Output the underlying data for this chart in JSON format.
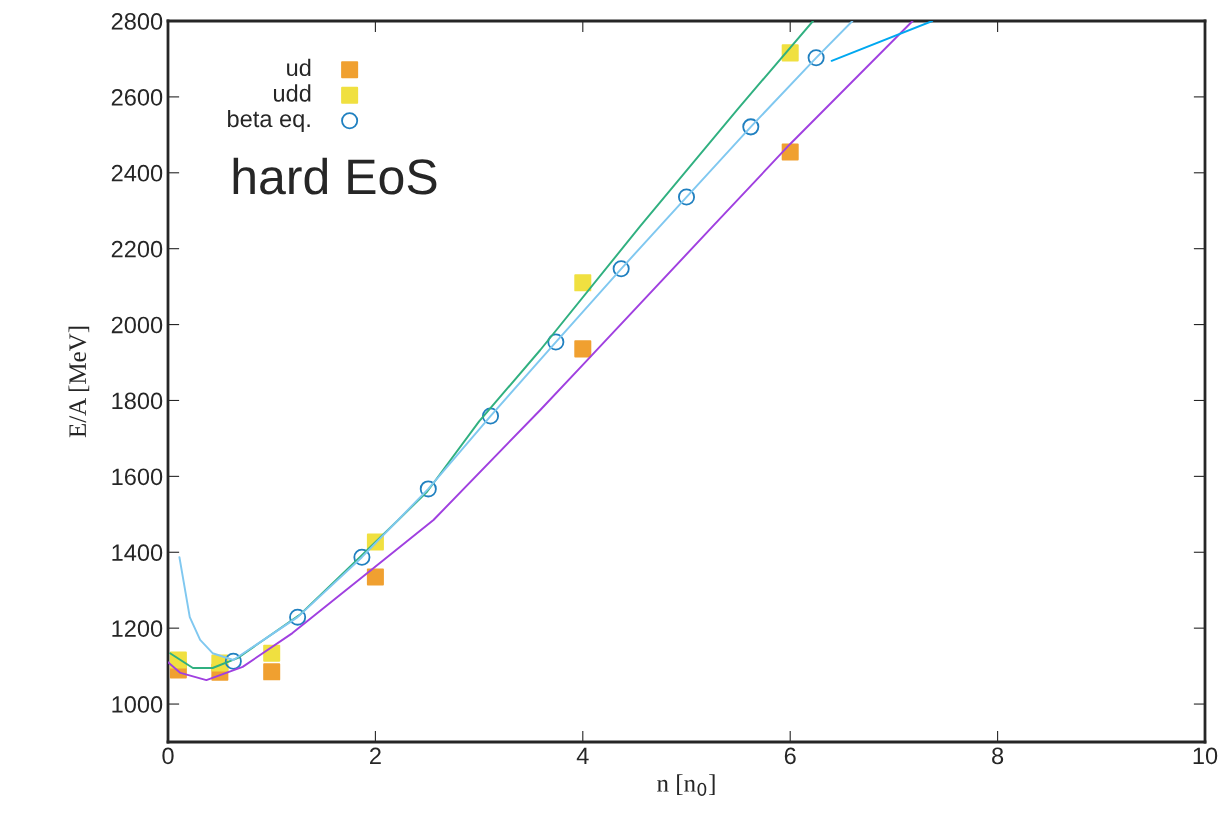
{
  "chart_data": {
    "type": "scatter",
    "xlabel": "n [n$_{0}$]",
    "ylabel": "E/A [MeV]",
    "xlim": [
      0,
      10
    ],
    "ylim": [
      900,
      2800
    ],
    "xticks": [
      0,
      2,
      4,
      6,
      8,
      10
    ],
    "yticks": [
      1000,
      1200,
      1400,
      1600,
      1800,
      2000,
      2200,
      2400,
      2600,
      2800
    ],
    "grid": false,
    "legend": "top left",
    "annotations": [
      "hard EoS"
    ],
    "series": [
      {
        "type": "line",
        "color": "#30b080",
        "marker": "none",
        "x": [
          0.02,
          0.24,
          0.43,
          0.67,
          1.27,
          1.85,
          2.22,
          2.5,
          3,
          3.59,
          4.55,
          5.5,
          6.22
        ],
        "values": [
          1134,
          1095,
          1095,
          1121,
          1235,
          1387,
          1485,
          1560,
          1745,
          1933,
          2258,
          2570,
          2800
        ]
      },
      {
        "type": "line",
        "color": "#80c8f0",
        "marker": "none",
        "x": [
          0.11,
          0.21,
          0.31,
          0.43,
          0.63,
          1.25,
          1.87,
          2.51,
          3.11,
          3.74,
          4.37,
          5.0,
          5.62,
          6.25,
          6.6
        ],
        "values": [
          1387,
          1229,
          1169,
          1134,
          1116,
          1229,
          1387,
          1567,
          1759,
          1954,
          2147,
          2336,
          2521,
          2703,
          2800
        ]
      },
      {
        "type": "line",
        "color": "#a040e0",
        "marker": "none",
        "x": [
          0.0,
          0.12,
          0.37,
          0.72,
          1.2,
          1.92,
          2.56,
          3.59,
          4,
          5.25,
          6,
          7.18
        ],
        "values": [
          1110,
          1082,
          1063,
          1098,
          1187,
          1345,
          1485,
          1775,
          1894,
          2258,
          2476,
          2800
        ]
      },
      {
        "type": "line",
        "color": "#00a8f0",
        "marker": "none",
        "x": [
          6.4,
          7.37
        ],
        "values": [
          2695,
          2800
        ]
      },
      {
        "name": "ud",
        "color": "#f0a030",
        "marker": "square",
        "x": [
          0.1,
          0.5,
          1,
          2,
          4,
          6
        ],
        "values": [
          1090,
          1084,
          1085,
          1335,
          1936,
          2455
        ]
      },
      {
        "name": "udd",
        "color": "#f0e040",
        "marker": "square",
        "x": [
          0.1,
          0.5,
          1,
          2,
          4,
          6
        ],
        "values": [
          1116,
          1108,
          1134,
          1427,
          2110,
          2716
        ]
      },
      {
        "name": "beta eq.",
        "color": "#2080c0",
        "marker": "circle",
        "x": [
          0.63,
          1.25,
          1.87,
          2.51,
          3.11,
          3.74,
          4.37,
          5.0,
          5.62,
          6.25
        ],
        "values": [
          1113,
          1229,
          1387,
          1567,
          1759,
          1954,
          2147,
          2336,
          2521,
          2703
        ]
      }
    ]
  }
}
